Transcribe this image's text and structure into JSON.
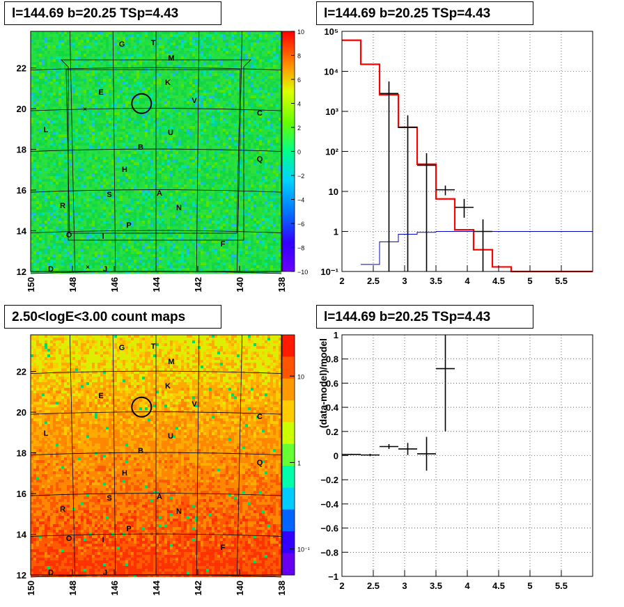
{
  "panels": {
    "skymap_ts": {
      "title": "l=144.69 b=20.25 TSp=4.43"
    },
    "spectrum": {
      "title": "l=144.69 b=20.25 TSp=4.43"
    },
    "countmap": {
      "title": "2.50<logE<3.00 count maps"
    },
    "residual": {
      "title": "l=144.69 b=20.25 TSp=4.43"
    }
  },
  "chart_data": [
    {
      "type": "heatmap",
      "title": "l=144.69 b=20.25 TSp=4.43",
      "x_ticks": [
        "150",
        "148",
        "146",
        "144",
        "142",
        "140",
        "138"
      ],
      "y_ticks": [
        "12",
        "14",
        "16",
        "18",
        "20",
        "22"
      ],
      "xlim": [
        150,
        138
      ],
      "ylim": [
        12,
        23.8
      ],
      "colorbar_ticks": [
        "10",
        "8",
        "6",
        "4",
        "2",
        "0",
        "−2",
        "−4",
        "−6",
        "−8",
        "−10"
      ],
      "zlim": [
        -10,
        10
      ],
      "colors": {
        "low": "#5500cc",
        "mid": "#00ff44",
        "high": "#ff0000"
      },
      "source_marker": {
        "l": 144.69,
        "b": 20.25
      },
      "region_labels": [
        "G",
        "T",
        "M",
        "K",
        "E",
        "V",
        "C",
        "L",
        "U",
        "B",
        "Q",
        "H",
        "S",
        "A",
        "N",
        "R",
        "P",
        "O",
        "I",
        "F",
        "D",
        "J"
      ]
    },
    {
      "type": "line",
      "title": "l=144.69 b=20.25 TSp=4.43",
      "x_ticks": [
        "2",
        "2.5",
        "3",
        "3.5",
        "4",
        "4.5",
        "5",
        "5.5"
      ],
      "y_ticks": [
        "10⁻¹",
        "1",
        "10",
        "10²",
        "10³",
        "10⁴",
        "10⁵"
      ],
      "xlim": [
        2,
        6
      ],
      "ylim": [
        0.1,
        100000
      ],
      "log_y": true,
      "grid": true,
      "data_points": {
        "x": [
          2.75,
          3.05,
          3.35,
          3.65,
          3.95,
          4.25
        ],
        "y": [
          2800,
          400,
          45,
          11,
          4,
          1
        ],
        "xerr": 0.15,
        "yerr_low": [
          2800,
          400,
          45,
          3,
          1.8,
          0.9
        ],
        "yerr_high": [
          2800,
          400,
          45,
          3,
          2.5,
          1
        ]
      },
      "model_total": {
        "edges": [
          2,
          2.3,
          2.6,
          2.9,
          3.2,
          3.5,
          3.8,
          4.1,
          4.4,
          4.7,
          6
        ],
        "values": [
          60000,
          15000,
          2600,
          400,
          48,
          6.5,
          1.1,
          0.35,
          0.13,
          0.1
        ],
        "color": "#ff0000"
      },
      "model_background": {
        "edges": [
          2.3,
          2.6,
          2.9,
          3.2,
          3.5,
          3.8,
          4.1,
          4.4,
          6
        ],
        "values": [
          0.15,
          0.55,
          0.85,
          0.95,
          1.0,
          1.0,
          1.0,
          1.0
        ],
        "color": "#0000cc"
      }
    },
    {
      "type": "heatmap",
      "title": "2.50<logE<3.00 count maps",
      "x_ticks": [
        "150",
        "148",
        "146",
        "144",
        "142",
        "140",
        "138"
      ],
      "y_ticks": [
        "12",
        "14",
        "16",
        "18",
        "20",
        "22"
      ],
      "xlim": [
        150,
        138
      ],
      "ylim": [
        12,
        23.8
      ],
      "colorbar_ticks": [
        "10",
        "1",
        "10⁻¹"
      ],
      "zlim": [
        0.05,
        30
      ],
      "log_z": true,
      "source_marker": {
        "l": 144.69,
        "b": 20.25
      },
      "region_labels": [
        "G",
        "T",
        "M",
        "K",
        "E",
        "V",
        "C",
        "L",
        "U",
        "B",
        "Q",
        "H",
        "S",
        "A",
        "N",
        "R",
        "P",
        "O",
        "I",
        "F",
        "D",
        "J"
      ]
    },
    {
      "type": "scatter",
      "title": "l=144.69 b=20.25 TSp=4.43",
      "ylabel": "(data-model)/model",
      "x_ticks": [
        "2",
        "2.5",
        "3",
        "3.5",
        "4",
        "4.5",
        "5",
        "5.5"
      ],
      "y_ticks": [
        "−1",
        "−0.8",
        "−0.6",
        "−0.4",
        "−0.2",
        "0",
        "0.2",
        "0.4",
        "0.6",
        "0.8",
        "1"
      ],
      "xlim": [
        2,
        6
      ],
      "ylim": [
        -1,
        1
      ],
      "grid": true,
      "points": [
        {
          "x": 2.15,
          "y": 0.01,
          "xerr": 0.15,
          "yerr": 0.005
        },
        {
          "x": 2.45,
          "y": 0.005,
          "xerr": 0.15,
          "yerr": 0.01
        },
        {
          "x": 2.75,
          "y": 0.075,
          "xerr": 0.15,
          "yerr": 0.02
        },
        {
          "x": 3.05,
          "y": 0.055,
          "xerr": 0.15,
          "yerr": 0.05
        },
        {
          "x": 3.35,
          "y": 0.015,
          "xerr": 0.15,
          "yerr": 0.14
        },
        {
          "x": 3.65,
          "y": 0.72,
          "xerr": 0.15,
          "yerr": 0.52
        }
      ]
    }
  ]
}
